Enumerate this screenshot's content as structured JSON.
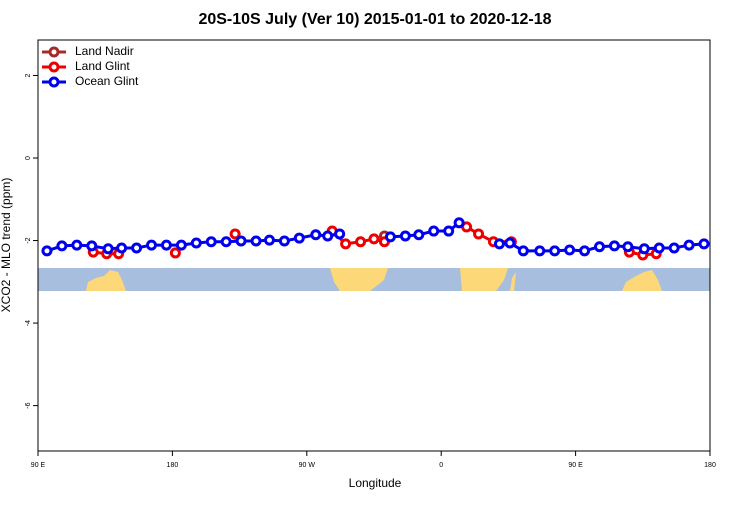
{
  "chart_data": {
    "type": "line",
    "title": "20S-10S July (Ver 10)   2015-01-01 to 2020-12-18",
    "x_label": "Longitude",
    "y_label": "XCO2 - MLO trend (ppm)",
    "xlim": [
      90,
      540
    ],
    "xticks": [
      {
        "value": 90,
        "label": "90 E"
      },
      {
        "value": 180,
        "label": "180"
      },
      {
        "value": 270,
        "label": "90 W"
      },
      {
        "value": 360,
        "label": "0"
      },
      {
        "value": 450,
        "label": "90 E"
      },
      {
        "value": 540,
        "label": "180"
      }
    ],
    "ylim": [
      -7.1,
      2.86
    ],
    "yticks": [
      2,
      0,
      -2,
      -4,
      -6
    ],
    "legend": "top-left",
    "series": [
      {
        "name": "Land Nadir",
        "color": "#a52a2a",
        "x": [
          322
        ],
        "values": [
          -1.89
        ]
      },
      {
        "name": "Land Glint",
        "color": "#ee0000",
        "x": [
          127,
          136,
          144,
          null,
          182,
          null,
          222,
          null,
          287,
          296,
          306,
          315,
          322,
          null,
          377,
          385,
          395,
          407,
          null,
          486,
          495,
          504
        ],
        "values": [
          -2.28,
          -2.32,
          -2.32,
          null,
          -2.3,
          null,
          -1.84,
          null,
          -1.77,
          -2.08,
          -2.03,
          -1.96,
          -2.03,
          null,
          -1.67,
          -1.84,
          -2.03,
          -2.03,
          null,
          -2.28,
          -2.35,
          -2.32
        ]
      },
      {
        "name": "Ocean Glint",
        "color": "#0000ee",
        "x": [
          96,
          106,
          116,
          126,
          137,
          146,
          156,
          166,
          176,
          186,
          196,
          206,
          216,
          226,
          236,
          245,
          255,
          265,
          276,
          284,
          292,
          null,
          326,
          336,
          345,
          355,
          365,
          372,
          null,
          399,
          406,
          415,
          426,
          436,
          446,
          456,
          466,
          476,
          485,
          496,
          506,
          516,
          526,
          536
        ],
        "values": [
          -2.25,
          -2.13,
          -2.11,
          -2.13,
          -2.2,
          -2.18,
          -2.18,
          -2.11,
          -2.11,
          -2.11,
          -2.06,
          -2.03,
          -2.03,
          -2.01,
          -2.01,
          -1.99,
          -2.01,
          -1.94,
          -1.86,
          -1.89,
          -1.84,
          null,
          -1.91,
          -1.89,
          -1.86,
          -1.77,
          -1.77,
          -1.57,
          null,
          -2.08,
          -2.06,
          -2.25,
          -2.25,
          -2.25,
          -2.23,
          -2.25,
          -2.15,
          -2.13,
          -2.15,
          -2.2,
          -2.18,
          -2.18,
          -2.11,
          -2.08
        ]
      }
    ]
  }
}
